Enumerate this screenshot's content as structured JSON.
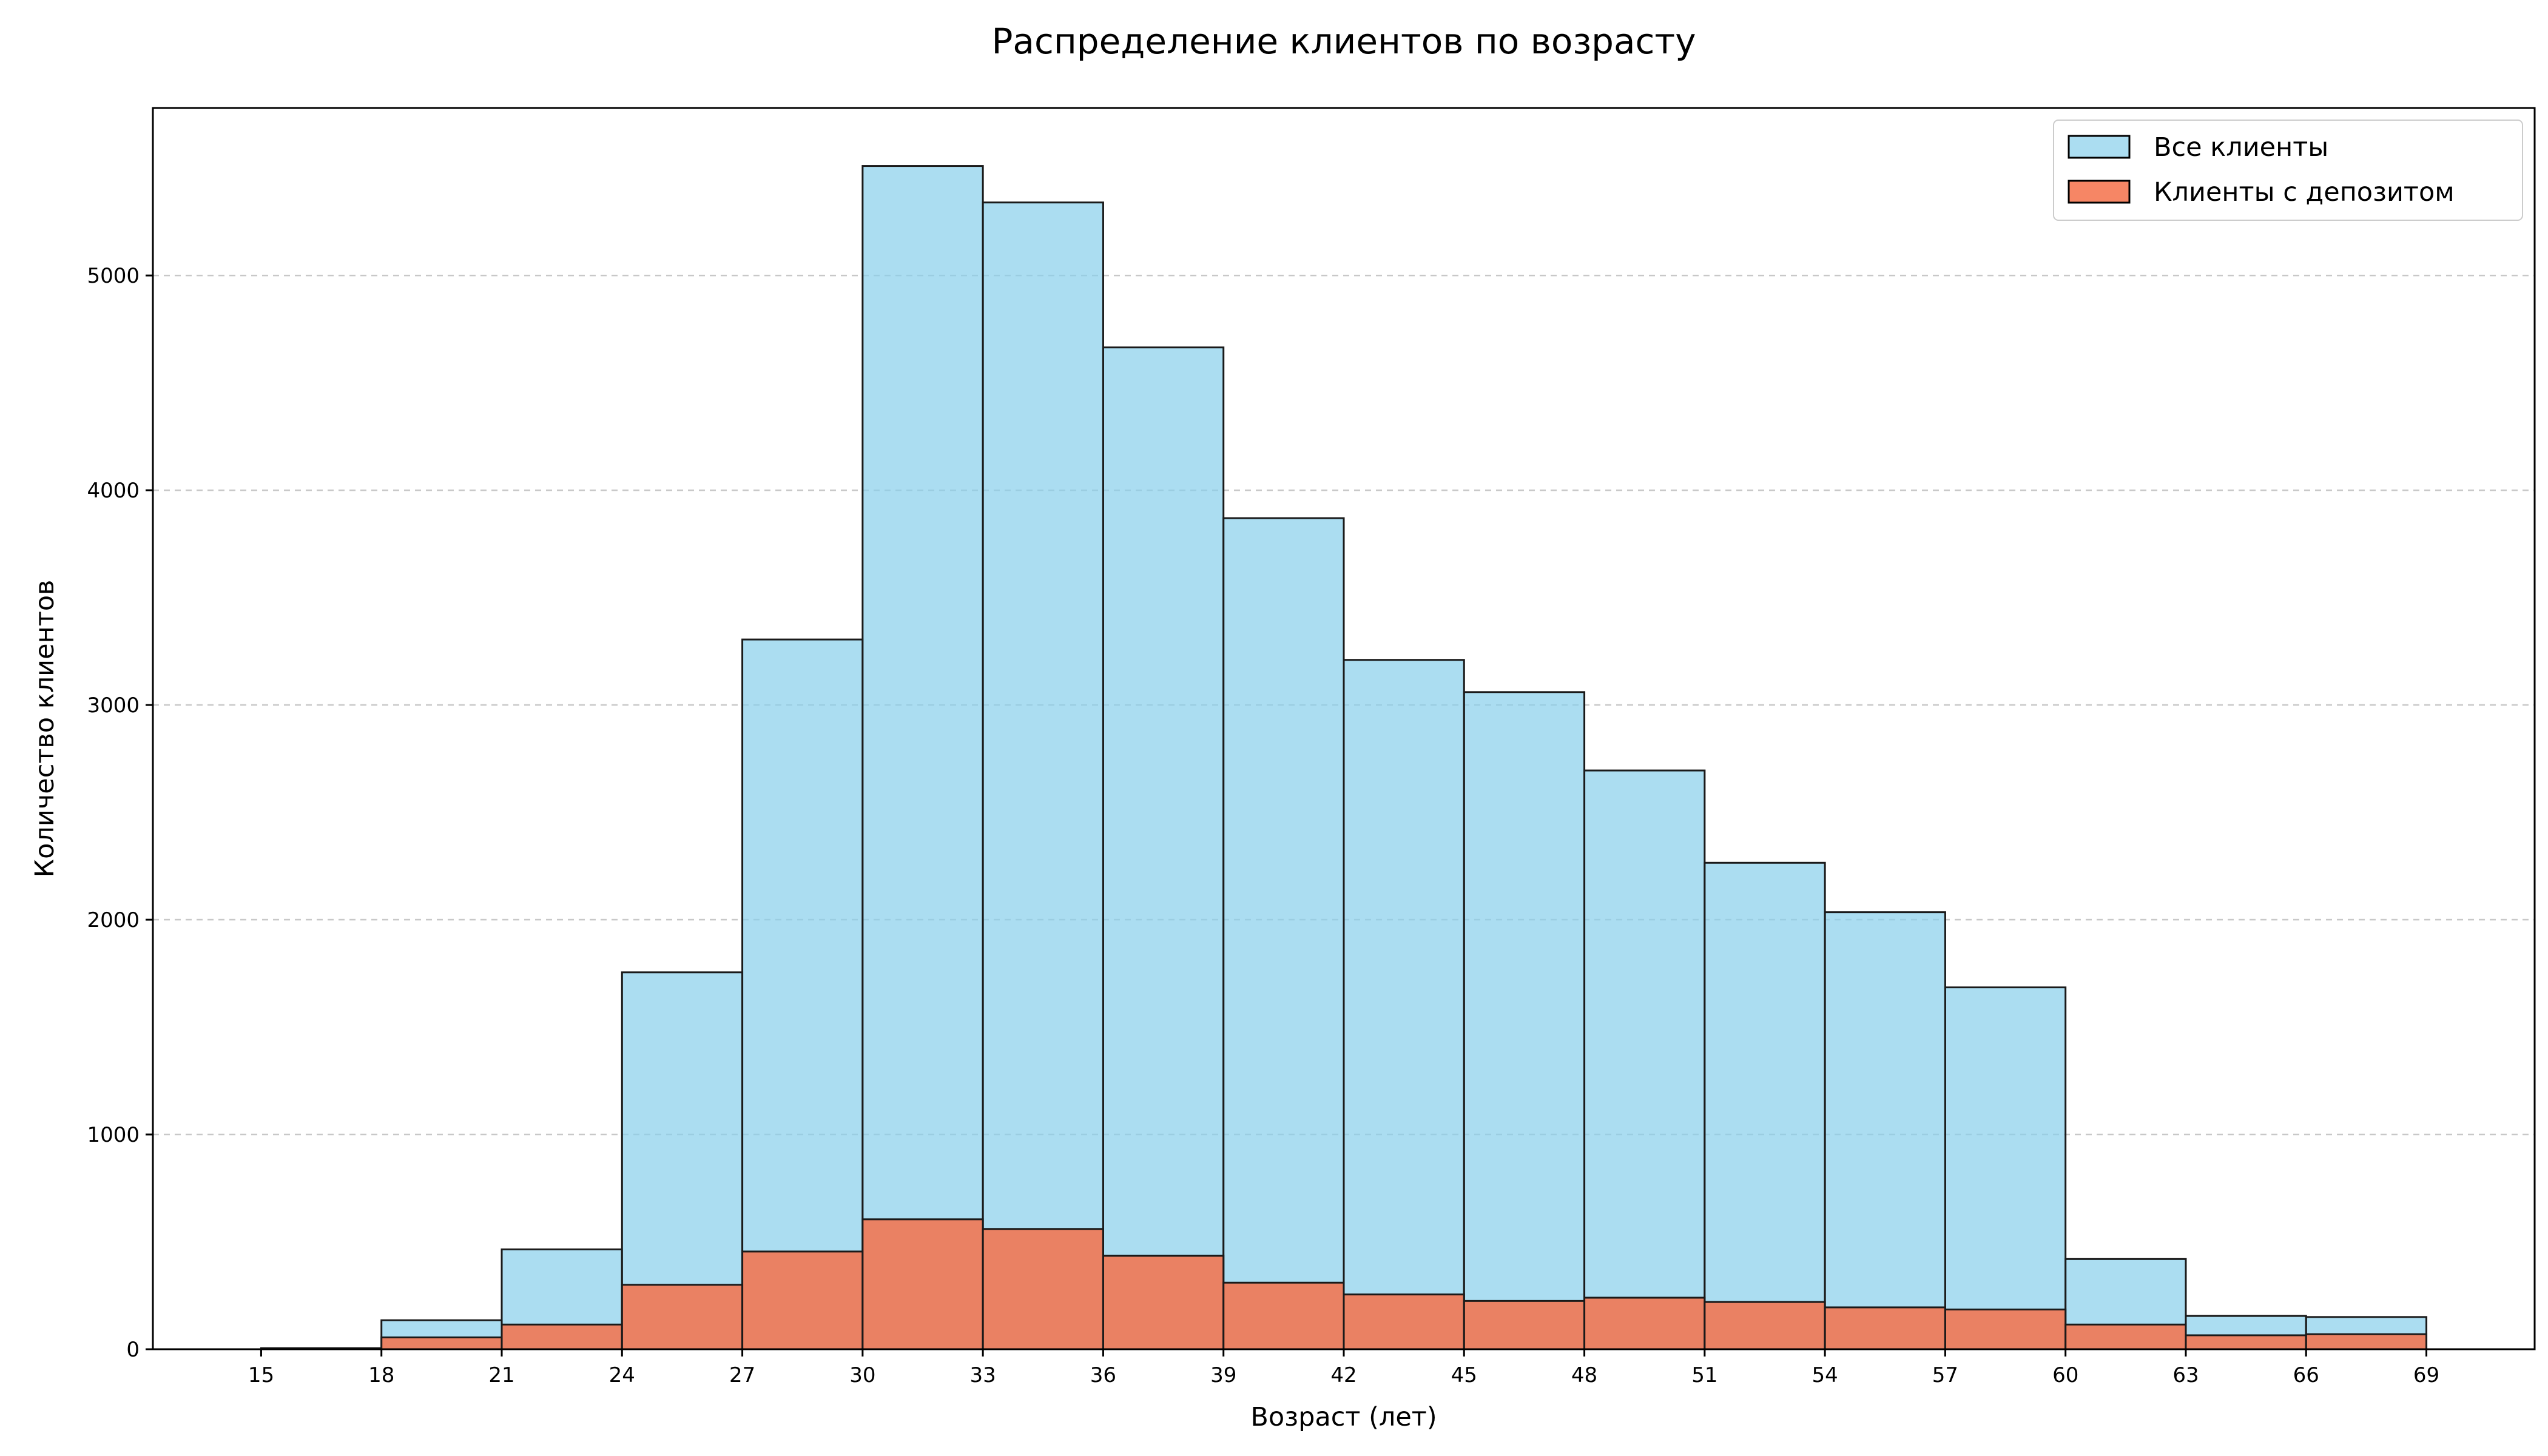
{
  "chart_data": {
    "type": "bar",
    "title": "Распределение клиентов по возрасту",
    "xlabel": "Возраст (лет)",
    "ylabel": "Количество клиентов",
    "bin_edges": [
      15,
      18,
      21,
      24,
      27,
      30,
      33,
      36,
      39,
      42,
      45,
      48,
      51,
      54,
      57,
      60,
      63,
      66,
      69
    ],
    "x_ticks": [
      "15",
      "18",
      "21",
      "24",
      "27",
      "30",
      "33",
      "36",
      "39",
      "42",
      "45",
      "48",
      "51",
      "54",
      "57",
      "60",
      "63",
      "66",
      "69"
    ],
    "y_ticks": [
      "0",
      "1000",
      "2000",
      "3000",
      "4000",
      "5000"
    ],
    "xlim": [
      12.3,
      71.7
    ],
    "ylim": [
      0,
      5780
    ],
    "grid": "horizontal dashed",
    "legend_position": "top-right",
    "series": [
      {
        "name": "Все клиенты",
        "color": "#87ceeb",
        "values": [
          5,
          135,
          465,
          1755,
          3305,
          5510,
          5340,
          4665,
          3870,
          3210,
          3060,
          2695,
          2265,
          2035,
          1685,
          420,
          155,
          150
        ]
      },
      {
        "name": "Клиенты с депозитом",
        "color": "#f4714a",
        "values": [
          2,
          55,
          115,
          300,
          455,
          605,
          560,
          435,
          310,
          255,
          225,
          240,
          220,
          195,
          185,
          115,
          65,
          70
        ]
      }
    ]
  }
}
